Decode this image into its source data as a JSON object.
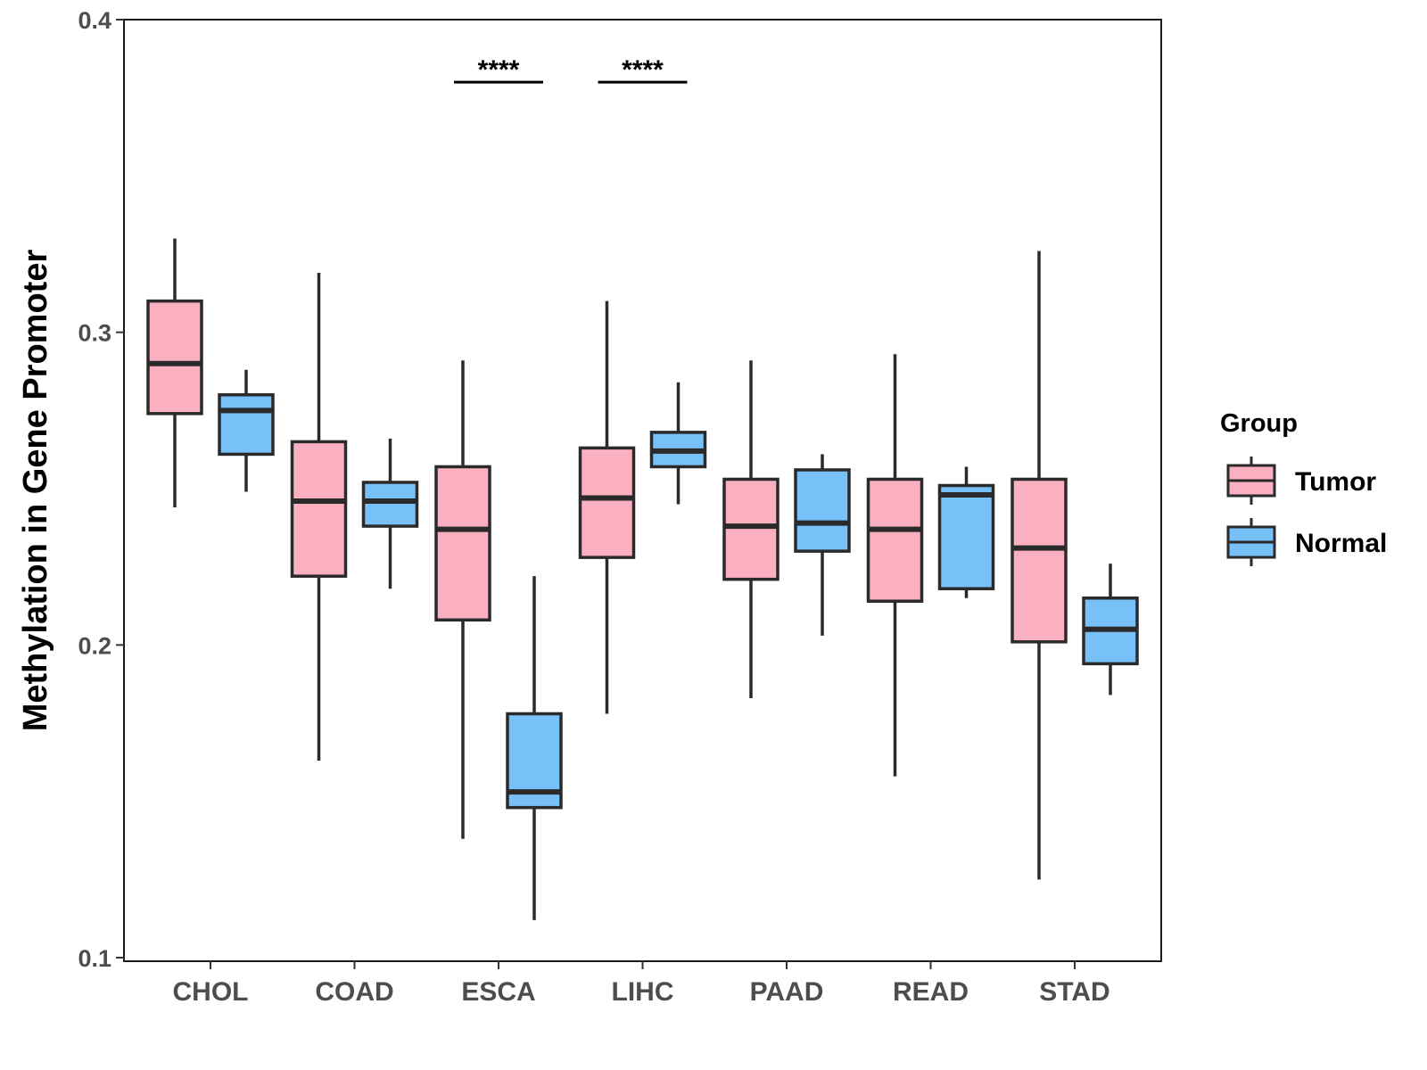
{
  "chart_data": {
    "type": "boxplot",
    "title": "",
    "xlabel": "",
    "ylabel": "Methylation in Gene Promoter",
    "ylim": [
      0.1,
      0.4
    ],
    "yticks": [
      "0.1",
      "0.2",
      "0.3",
      "0.4"
    ],
    "grid": false,
    "categories": [
      "CHOL",
      "COAD",
      "ESCA",
      "LIHC",
      "PAAD",
      "READ",
      "STAD"
    ],
    "legend": {
      "title": "Group",
      "position": "right",
      "entries": [
        {
          "name": "Tumor",
          "color": "#fbb0c2"
        },
        {
          "name": "Normal",
          "color": "#78c0f8"
        }
      ]
    },
    "series": [
      {
        "name": "Tumor",
        "color": "#fbb0c2",
        "boxes": [
          {
            "min": 0.244,
            "q1": 0.274,
            "median": 0.29,
            "q3": 0.31,
            "max": 0.33
          },
          {
            "min": 0.163,
            "q1": 0.222,
            "median": 0.246,
            "q3": 0.265,
            "max": 0.319
          },
          {
            "min": 0.138,
            "q1": 0.208,
            "median": 0.237,
            "q3": 0.257,
            "max": 0.291
          },
          {
            "min": 0.178,
            "q1": 0.228,
            "median": 0.247,
            "q3": 0.263,
            "max": 0.31
          },
          {
            "min": 0.183,
            "q1": 0.221,
            "median": 0.238,
            "q3": 0.253,
            "max": 0.291
          },
          {
            "min": 0.158,
            "q1": 0.214,
            "median": 0.237,
            "q3": 0.253,
            "max": 0.293
          },
          {
            "min": 0.125,
            "q1": 0.201,
            "median": 0.231,
            "q3": 0.253,
            "max": 0.326
          }
        ]
      },
      {
        "name": "Normal",
        "color": "#78c0f8",
        "boxes": [
          {
            "min": 0.249,
            "q1": 0.261,
            "median": 0.275,
            "q3": 0.28,
            "max": 0.288
          },
          {
            "min": 0.218,
            "q1": 0.238,
            "median": 0.246,
            "q3": 0.252,
            "max": 0.266
          },
          {
            "min": 0.112,
            "q1": 0.148,
            "median": 0.153,
            "q3": 0.178,
            "max": 0.222
          },
          {
            "min": 0.245,
            "q1": 0.257,
            "median": 0.262,
            "q3": 0.268,
            "max": 0.284
          },
          {
            "min": 0.203,
            "q1": 0.23,
            "median": 0.239,
            "q3": 0.256,
            "max": 0.261
          },
          {
            "min": 0.215,
            "q1": 0.218,
            "median": 0.248,
            "q3": 0.251,
            "max": 0.257
          },
          {
            "min": 0.184,
            "q1": 0.194,
            "median": 0.205,
            "q3": 0.215,
            "max": 0.226
          }
        ]
      }
    ],
    "annotations": [
      {
        "category": "ESCA",
        "text": "****",
        "y": 0.38
      },
      {
        "category": "LIHC",
        "text": "****",
        "y": 0.38
      }
    ]
  }
}
